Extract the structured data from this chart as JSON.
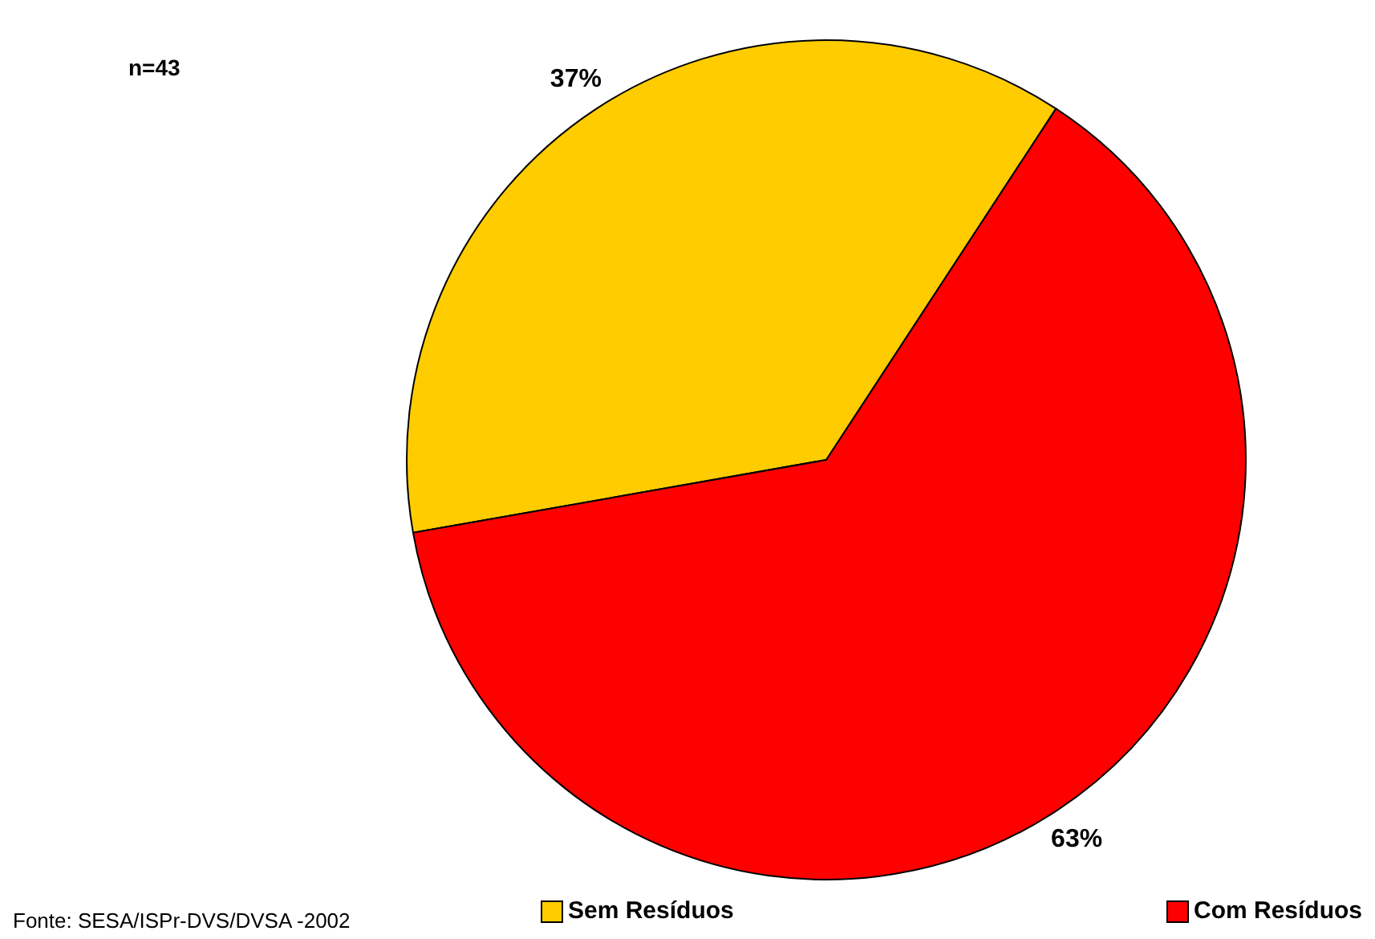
{
  "chart_data": {
    "type": "pie",
    "categories": [
      "Sem Resíduos",
      "Com Resíduos"
    ],
    "values": [
      37,
      63
    ],
    "colors": [
      "#ffcc00",
      "#ff0000"
    ],
    "value_labels": [
      "37%",
      "63%"
    ],
    "legend": "bottom",
    "annotations": [
      "n=43",
      "Fonte: SESA/ISPr-DVS/DVSA -2002"
    ]
  }
}
